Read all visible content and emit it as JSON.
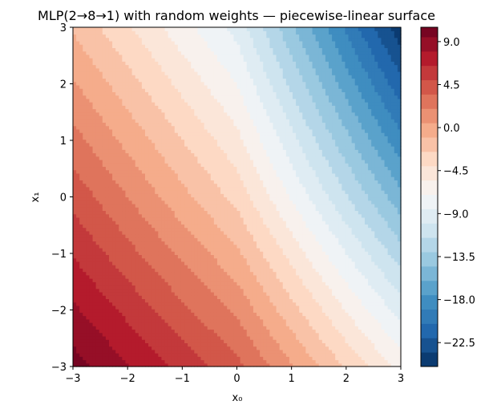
{
  "chart_data": {
    "type": "heatmap",
    "subtype": "filled-contour",
    "title": "MLP(2→8→1) with random weights — piecewise-linear surface",
    "xlabel": "x₀",
    "ylabel": "x₁",
    "xlim": [
      -3,
      3
    ],
    "ylim": [
      -3,
      3
    ],
    "x_ticks": [
      -3,
      -2,
      -1,
      0,
      1,
      2,
      3
    ],
    "y_ticks": [
      -3,
      -2,
      -1,
      0,
      1,
      2,
      3
    ],
    "x_tick_labels": [
      "−3",
      "−2",
      "−1",
      "0",
      "1",
      "2",
      "3"
    ],
    "y_tick_labels": [
      "−3",
      "−2",
      "−1",
      "0",
      "1",
      "2",
      "3"
    ],
    "colormap": "RdBu_r",
    "colorbar": {
      "range": [
        -25,
        10.5
      ],
      "level_step": 1.5,
      "ticks": [
        9.0,
        4.5,
        0.0,
        -4.5,
        -9.0,
        -13.5,
        -18.0,
        -22.5
      ],
      "tick_labels": [
        "9.0",
        "4.5",
        "0.0",
        "−4.5",
        "−9.0",
        "−13.5",
        "−18.0",
        "−22.5"
      ]
    },
    "grid": false,
    "surface_samples": {
      "description": "approximate surface value z at sampled (x0, x1)",
      "points": [
        {
          "x0": -3,
          "x1": -3,
          "z": 10.2
        },
        {
          "x0": 0,
          "x1": -3,
          "z": 4.0
        },
        {
          "x0": 3,
          "x1": -3,
          "z": -6.0
        },
        {
          "x0": -3,
          "x1": 0,
          "z": 4.5
        },
        {
          "x0": 0,
          "x1": 0,
          "z": -3.0
        },
        {
          "x0": 3,
          "x1": 0,
          "z": -15.5
        },
        {
          "x0": -3,
          "x1": 3,
          "z": -1.2
        },
        {
          "x0": 0,
          "x1": 3,
          "z": -9.0
        },
        {
          "x0": 3,
          "x1": 3,
          "z": -24.5
        }
      ]
    }
  }
}
